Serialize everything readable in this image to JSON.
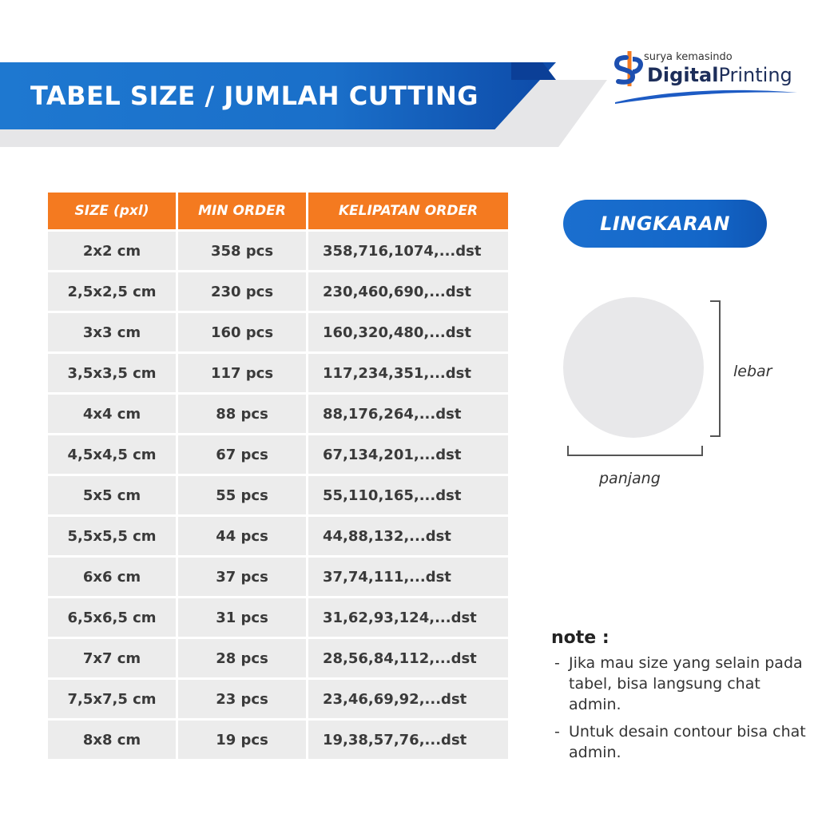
{
  "banner": {
    "title": "TABEL SIZE / JUMLAH CUTTING"
  },
  "logo": {
    "tagline": "surya kemasindo",
    "name_bold": "Digital",
    "name_regular": "Printing",
    "icon": "sp-logo-icon"
  },
  "table": {
    "headers": [
      "SIZE (pxl)",
      "MIN ORDER",
      "KELIPATAN ORDER"
    ],
    "rows": [
      [
        "2x2 cm",
        "358 pcs",
        "358,716,1074,...dst"
      ],
      [
        "2,5x2,5 cm",
        "230 pcs",
        "230,460,690,...dst"
      ],
      [
        "3x3 cm",
        "160 pcs",
        "160,320,480,...dst"
      ],
      [
        "3,5x3,5 cm",
        "117 pcs",
        "117,234,351,...dst"
      ],
      [
        "4x4 cm",
        "88 pcs",
        "88,176,264,...dst"
      ],
      [
        "4,5x4,5 cm",
        "67 pcs",
        "67,134,201,...dst"
      ],
      [
        "5x5 cm",
        "55 pcs",
        "55,110,165,...dst"
      ],
      [
        "5,5x5,5 cm",
        "44 pcs",
        "44,88,132,...dst"
      ],
      [
        "6x6 cm",
        "37 pcs",
        "37,74,111,...dst"
      ],
      [
        "6,5x6,5 cm",
        "31 pcs",
        "31,62,93,124,...dst"
      ],
      [
        "7x7 cm",
        "28 pcs",
        "28,56,84,112,...dst"
      ],
      [
        "7,5x7,5 cm",
        "23 pcs",
        "23,46,69,92,...dst"
      ],
      [
        "8x8 cm",
        "19 pcs",
        "19,38,57,76,...dst"
      ]
    ]
  },
  "shape": {
    "label": "LINGKARAN",
    "width_label": "lebar",
    "length_label": "panjang"
  },
  "note": {
    "title": "note :",
    "items": [
      "Jika mau size yang selain pada tabel, bisa langsung chat admin.",
      "Untuk desain contour bisa chat admin."
    ]
  },
  "colors": {
    "brand_blue": "#1a6fc9",
    "header_orange": "#f47a20",
    "cell_gray": "#ececec"
  }
}
